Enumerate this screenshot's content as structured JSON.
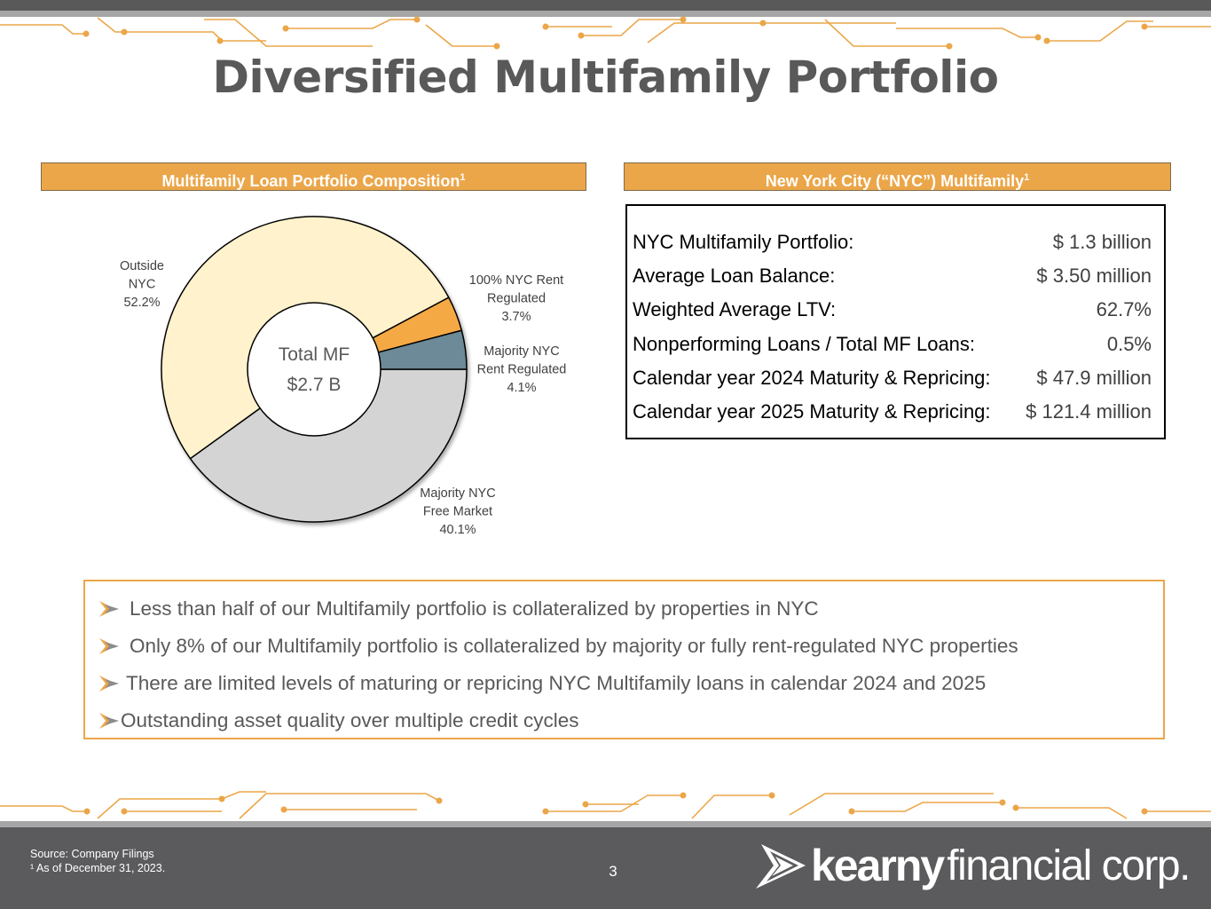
{
  "title": "Diversified Multifamily Portfolio",
  "left_panel": {
    "header": "Multifamily Loan Portfolio Composition",
    "header_sup": "1"
  },
  "right_panel": {
    "header": "New York City (“NYC”) Multifamily",
    "header_sup": "1",
    "rows": [
      {
        "label": "NYC Multifamily Portfolio:",
        "value": "$ 1.3 billion"
      },
      {
        "label": "Average Loan Balance:",
        "value": "$ 3.50 million"
      },
      {
        "label": "Weighted Average LTV:",
        "value": "62.7%"
      },
      {
        "label": "Nonperforming Loans / Total MF Loans:",
        "value": "0.5%"
      },
      {
        "label": "Calendar year 2024 Maturity & Repricing:",
        "value": "$ 47.9 million"
      },
      {
        "label": "Calendar year 2025 Maturity & Repricing:",
        "value": "$ 121.4 million"
      }
    ]
  },
  "chart_data": {
    "type": "pie",
    "subtype": "donut",
    "center_label": [
      "Total MF",
      "$2.7 B"
    ],
    "slices": [
      {
        "name": "Majority NYC Free Market",
        "label_lines": [
          "Majority NYC",
          "Free Market",
          "40.1%"
        ],
        "value": 40.1,
        "color": "#d4d4d4"
      },
      {
        "name": "Outside NYC",
        "label_lines": [
          "Outside",
          "NYC",
          "52.2%"
        ],
        "value": 52.2,
        "color": "#fff2cc"
      },
      {
        "name": "100% NYC Rent Regulated",
        "label_lines": [
          "100% NYC Rent",
          "Regulated",
          "3.7%"
        ],
        "value": 3.7,
        "color": "#f5a944"
      },
      {
        "name": "Majority NYC Rent Regulated",
        "label_lines": [
          "Majority NYC",
          "Rent Regulated",
          "4.1%"
        ],
        "value": 4.1,
        "color": "#6c8a98"
      }
    ]
  },
  "bullets": [
    "Less than half of our Multifamily portfolio is collateralized by properties in NYC",
    "Only 8% of our Multifamily portfolio is collateralized by majority or fully rent-regulated NYC properties",
    "There are limited levels of maturing or repricing NYC Multifamily loans in calendar 2024 and 2025",
    "Outstanding asset quality over multiple credit cycles"
  ],
  "footer": {
    "source": "Source: Company Filings",
    "note": "¹ As of December 31, 2023.",
    "page_number": "3",
    "brand_bold": "kearny",
    "brand_light": "financial corp."
  },
  "colors": {
    "accent": "#eba649",
    "footer_bg": "#5b5b5e",
    "title": "#595959"
  }
}
